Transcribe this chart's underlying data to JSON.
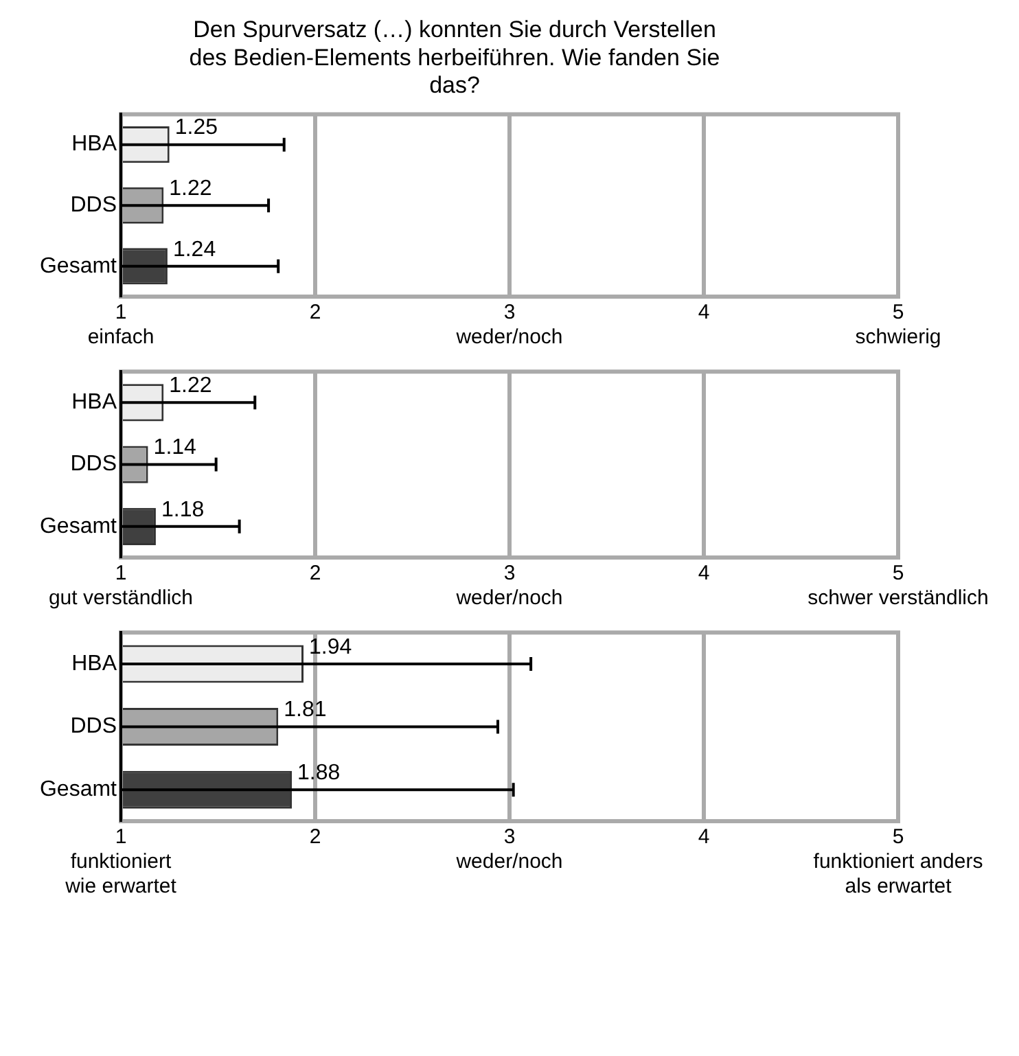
{
  "chart_data": [
    {
      "type": "bar",
      "orientation": "horizontal",
      "title": "Den Spurversatz (…) konnten Sie durch Verstellen des Bedien-Elements herbeiführen. Wie fanden Sie das?",
      "categories": [
        "HBA",
        "DDS",
        "Gesamt"
      ],
      "values": [
        1.25,
        1.22,
        1.24
      ],
      "colors": [
        "#ececec",
        "#a6a6a6",
        "#404040"
      ],
      "errors": [
        [
          1,
          1.84
        ],
        [
          1,
          1.76
        ],
        [
          1,
          1.81
        ]
      ],
      "data_labels": true,
      "xlim": [
        1,
        5
      ],
      "xticks": [
        {
          "value": 1,
          "label": "1\neinfach"
        },
        {
          "value": 2,
          "label": "2"
        },
        {
          "value": 3,
          "label": "3\nweder/noch"
        },
        {
          "value": 4,
          "label": "4"
        },
        {
          "value": 5,
          "label": "5\nschwierig"
        }
      ],
      "grid": "x",
      "legend": false
    },
    {
      "type": "bar",
      "orientation": "horizontal",
      "categories": [
        "HBA",
        "DDS",
        "Gesamt"
      ],
      "values": [
        1.22,
        1.14,
        1.18
      ],
      "colors": [
        "#ececec",
        "#a6a6a6",
        "#404040"
      ],
      "errors": [
        [
          1,
          1.69
        ],
        [
          1,
          1.49
        ],
        [
          1,
          1.61
        ]
      ],
      "data_labels": true,
      "xlim": [
        1,
        5
      ],
      "xticks": [
        {
          "value": 1,
          "label": "1\ngut verständlich"
        },
        {
          "value": 2,
          "label": "2"
        },
        {
          "value": 3,
          "label": "3\nweder/noch"
        },
        {
          "value": 4,
          "label": "4"
        },
        {
          "value": 5,
          "label": "5\nschwer verständlich"
        }
      ],
      "grid": "x",
      "legend": false
    },
    {
      "type": "bar",
      "orientation": "horizontal",
      "categories": [
        "HBA",
        "DDS",
        "Gesamt"
      ],
      "values": [
        1.94,
        1.81,
        1.88
      ],
      "colors": [
        "#ececec",
        "#a6a6a6",
        "#404040"
      ],
      "errors": [
        [
          1,
          3.11
        ],
        [
          1,
          2.94
        ],
        [
          1,
          3.02
        ]
      ],
      "data_labels": true,
      "xlim": [
        1,
        5
      ],
      "xticks": [
        {
          "value": 1,
          "label": "1\nfunktioniert\nwie erwartet"
        },
        {
          "value": 2,
          "label": "2"
        },
        {
          "value": 3,
          "label": "3\nweder/noch"
        },
        {
          "value": 4,
          "label": "4"
        },
        {
          "value": 5,
          "label": "5\nfunktioniert anders\nals erwartet"
        }
      ],
      "grid": "x",
      "legend": false
    }
  ]
}
